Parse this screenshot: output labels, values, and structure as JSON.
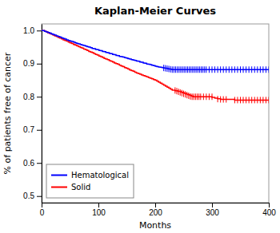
{
  "chart_data": {
    "type": "step",
    "title": "Kaplan-Meier Curves",
    "x_label": "Months",
    "y_label": "% of patients free of cancer",
    "xlim": [
      0,
      400
    ],
    "ylim": [
      0.48,
      1.02
    ],
    "xticks": [
      0,
      100,
      200,
      300,
      400
    ],
    "yticks": [
      0.5,
      0.6,
      0.7,
      0.8,
      0.9,
      {
        "value": 1.0,
        "label": "1.0"
      }
    ],
    "grid": false,
    "legend": "lower left",
    "series": [
      {
        "name": "Hematological",
        "color": "#0000FF",
        "x": [
          0,
          5,
          8,
          11,
          14,
          17,
          20,
          23,
          26,
          29,
          32,
          35,
          38,
          41,
          44,
          47,
          50,
          53,
          56,
          59,
          62,
          65,
          68,
          71,
          74,
          77,
          80,
          83,
          86,
          89,
          92,
          95,
          98,
          101,
          104,
          107,
          110,
          113,
          116,
          119,
          122,
          125,
          128,
          131,
          134,
          137,
          140,
          143,
          146,
          149,
          152,
          155,
          158,
          161,
          164,
          167,
          170,
          173,
          176,
          179,
          182,
          185,
          188,
          191,
          194,
          197,
          200,
          203,
          206,
          209,
          212,
          215,
          218,
          221,
          224,
          227,
          230,
          233,
          236,
          239,
          242,
          245,
          248,
          251,
          254,
          257,
          260,
          263,
          266,
          269,
          272,
          275,
          278,
          281,
          284,
          287,
          290,
          295,
          300,
          305,
          310,
          315,
          320,
          325,
          330,
          335,
          340,
          345,
          350,
          355,
          360,
          365,
          370,
          375,
          380,
          385,
          390,
          395,
          400
        ],
        "values": [
          1.0,
          0.998,
          0.996,
          0.994,
          0.992,
          0.99,
          0.988,
          0.986,
          0.984,
          0.982,
          0.98,
          0.978,
          0.976,
          0.974,
          0.972,
          0.97,
          0.968,
          0.967,
          0.965,
          0.963,
          0.961,
          0.96,
          0.958,
          0.956,
          0.955,
          0.953,
          0.951,
          0.95,
          0.948,
          0.946,
          0.945,
          0.943,
          0.942,
          0.94,
          0.939,
          0.937,
          0.936,
          0.934,
          0.933,
          0.931,
          0.93,
          0.928,
          0.927,
          0.925,
          0.924,
          0.922,
          0.921,
          0.92,
          0.918,
          0.917,
          0.915,
          0.914,
          0.912,
          0.911,
          0.91,
          0.908,
          0.907,
          0.905,
          0.904,
          0.902,
          0.901,
          0.899,
          0.898,
          0.897,
          0.895,
          0.894,
          0.892,
          0.891,
          0.89,
          0.889,
          0.888,
          0.887,
          0.886,
          0.885,
          0.884,
          0.883,
          0.882,
          0.882,
          0.882,
          0.882,
          0.882,
          0.882,
          0.882,
          0.882,
          0.882,
          0.882,
          0.882,
          0.882,
          0.882,
          0.882,
          0.882,
          0.882,
          0.882,
          0.882,
          0.882,
          0.882,
          0.882,
          0.882,
          0.882,
          0.882,
          0.882,
          0.882,
          0.882,
          0.882,
          0.882,
          0.882,
          0.882,
          0.882,
          0.882,
          0.882,
          0.882,
          0.882,
          0.882,
          0.882,
          0.882,
          0.882,
          0.882,
          0.882,
          0.882
        ],
        "censor_x": [
          215,
          218,
          221,
          224,
          227,
          230,
          233,
          236,
          239,
          242,
          245,
          248,
          251,
          254,
          257,
          260,
          263,
          266,
          269,
          272,
          275,
          278,
          281,
          284,
          287,
          290,
          295,
          300,
          305,
          310,
          315,
          320,
          325,
          330,
          335,
          340,
          345,
          350,
          355,
          360,
          365,
          370,
          375,
          380,
          385,
          390,
          395,
          400
        ],
        "censor_values": [
          0.887,
          0.886,
          0.885,
          0.884,
          0.883,
          0.882,
          0.882,
          0.882,
          0.882,
          0.882,
          0.882,
          0.882,
          0.882,
          0.882,
          0.882,
          0.882,
          0.882,
          0.882,
          0.882,
          0.882,
          0.882,
          0.882,
          0.882,
          0.882,
          0.882,
          0.882,
          0.882,
          0.882,
          0.882,
          0.882,
          0.882,
          0.882,
          0.882,
          0.882,
          0.882,
          0.882,
          0.882,
          0.882,
          0.882,
          0.882,
          0.882,
          0.882,
          0.882,
          0.882,
          0.882,
          0.882,
          0.882,
          0.882
        ]
      },
      {
        "name": "Solid",
        "color": "#FF0000",
        "x": [
          0,
          5,
          8,
          11,
          14,
          17,
          20,
          23,
          26,
          29,
          32,
          35,
          38,
          41,
          44,
          47,
          50,
          53,
          56,
          59,
          62,
          65,
          68,
          71,
          74,
          77,
          80,
          83,
          86,
          89,
          92,
          95,
          98,
          101,
          104,
          107,
          110,
          113,
          116,
          119,
          122,
          125,
          128,
          131,
          134,
          137,
          140,
          143,
          146,
          149,
          152,
          155,
          158,
          161,
          164,
          167,
          170,
          173,
          176,
          179,
          182,
          185,
          188,
          191,
          194,
          197,
          200,
          203,
          206,
          209,
          212,
          215,
          218,
          221,
          224,
          227,
          230,
          235,
          240,
          245,
          248,
          251,
          255,
          258,
          261,
          264,
          267,
          270,
          275,
          280,
          285,
          290,
          295,
          300,
          305,
          310,
          315,
          320,
          325,
          330,
          340,
          350,
          360,
          370,
          380,
          390,
          400
        ],
        "values": [
          1.0,
          0.998,
          0.996,
          0.993,
          0.991,
          0.989,
          0.986,
          0.984,
          0.982,
          0.979,
          0.977,
          0.975,
          0.972,
          0.97,
          0.968,
          0.965,
          0.963,
          0.961,
          0.958,
          0.956,
          0.954,
          0.951,
          0.949,
          0.947,
          0.944,
          0.942,
          0.94,
          0.937,
          0.935,
          0.933,
          0.93,
          0.928,
          0.926,
          0.923,
          0.921,
          0.919,
          0.916,
          0.914,
          0.912,
          0.909,
          0.907,
          0.905,
          0.902,
          0.9,
          0.898,
          0.895,
          0.893,
          0.891,
          0.888,
          0.886,
          0.884,
          0.881,
          0.879,
          0.877,
          0.874,
          0.872,
          0.87,
          0.868,
          0.866,
          0.864,
          0.862,
          0.86,
          0.858,
          0.856,
          0.854,
          0.852,
          0.85,
          0.847,
          0.844,
          0.841,
          0.838,
          0.835,
          0.832,
          0.829,
          0.826,
          0.823,
          0.82,
          0.818,
          0.816,
          0.814,
          0.812,
          0.81,
          0.808,
          0.806,
          0.804,
          0.802,
          0.8,
          0.8,
          0.8,
          0.8,
          0.8,
          0.8,
          0.8,
          0.798,
          0.796,
          0.794,
          0.792,
          0.792,
          0.792,
          0.792,
          0.79,
          0.79,
          0.79,
          0.79,
          0.79,
          0.79,
          0.79
        ],
        "censor_x": [
          235,
          238,
          241,
          244,
          247,
          250,
          253,
          256,
          259,
          262,
          265,
          268,
          271,
          274,
          277,
          280,
          285,
          290,
          295,
          300,
          310,
          315,
          320,
          325,
          340,
          345,
          350,
          355,
          360,
          365,
          370,
          375,
          380,
          385,
          390,
          395,
          400
        ],
        "censor_values": [
          0.819,
          0.817,
          0.815,
          0.813,
          0.811,
          0.809,
          0.807,
          0.805,
          0.803,
          0.801,
          0.8,
          0.8,
          0.8,
          0.8,
          0.8,
          0.8,
          0.8,
          0.8,
          0.8,
          0.8,
          0.793,
          0.792,
          0.792,
          0.792,
          0.79,
          0.79,
          0.79,
          0.79,
          0.79,
          0.79,
          0.79,
          0.79,
          0.79,
          0.79,
          0.79,
          0.79,
          0.79
        ]
      }
    ]
  }
}
